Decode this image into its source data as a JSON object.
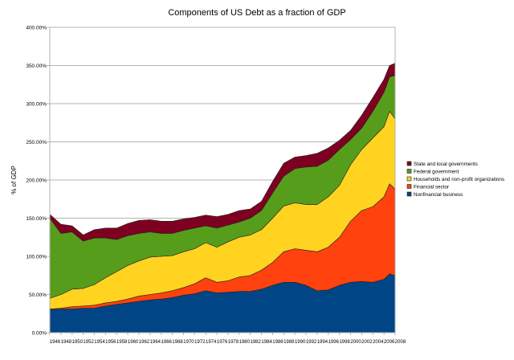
{
  "chart_data": {
    "type": "area",
    "stacked": true,
    "title": "Components of US Debt as a fraction of GDP",
    "xlabel": "",
    "ylabel": "% of GDP",
    "ylim": [
      0,
      400
    ],
    "yticks": [
      "0.00%",
      "50.00%",
      "100.00%",
      "150.00%",
      "200.00%",
      "250.00%",
      "300.00%",
      "350.00%",
      "400.00%"
    ],
    "xticks": [
      "1946",
      "1948",
      "1950",
      "1952",
      "1954",
      "1956",
      "1958",
      "1960",
      "1962",
      "1964",
      "1966",
      "1968",
      "1970",
      "1972",
      "1974",
      "1976",
      "1978",
      "1980",
      "1982",
      "1984",
      "1986",
      "1988",
      "1990",
      "1992",
      "1994",
      "1996",
      "1998",
      "2000",
      "2002",
      "2004",
      "2006",
      "2008"
    ],
    "grid": true,
    "legend_position": "right",
    "x": [
      1946,
      1948,
      1950,
      1952,
      1954,
      1956,
      1958,
      1960,
      1962,
      1964,
      1966,
      1968,
      1970,
      1972,
      1974,
      1976,
      1978,
      1980,
      1982,
      1984,
      1986,
      1988,
      1990,
      1992,
      1994,
      1996,
      1998,
      2000,
      2002,
      2004,
      2006,
      2007,
      2008
    ],
    "series": [
      {
        "name": "Nonfinancial business",
        "color": "#004586",
        "values": [
          30,
          31,
          31,
          32,
          32,
          35,
          37,
          39,
          41,
          43,
          44,
          46,
          49,
          51,
          55,
          52,
          53,
          54,
          54,
          57,
          62,
          66,
          66,
          62,
          55,
          56,
          62,
          66,
          67,
          66,
          70,
          77,
          75
        ]
      },
      {
        "name": "Financial sector",
        "color": "#ff420e",
        "values": [
          1,
          1,
          3,
          3,
          4,
          4,
          4,
          5,
          7,
          7,
          8,
          9,
          10,
          13,
          17,
          14,
          15,
          19,
          21,
          25,
          30,
          40,
          44,
          46,
          51,
          56,
          63,
          80,
          93,
          99,
          108,
          118,
          113
        ]
      },
      {
        "name": "Households and non-profit organizations",
        "color": "#ffd320",
        "values": [
          14,
          18,
          23,
          23,
          27,
          33,
          39,
          44,
          46,
          49,
          48,
          46,
          47,
          46,
          46,
          46,
          51,
          52,
          53,
          53,
          58,
          60,
          60,
          60,
          62,
          66,
          68,
          74,
          80,
          90,
          92,
          95,
          92
        ]
      },
      {
        "name": "Federal government",
        "color": "#579d1c",
        "values": [
          105,
          80,
          75,
          62,
          61,
          52,
          42,
          39,
          36,
          33,
          30,
          29,
          28,
          27,
          22,
          25,
          22,
          20,
          22,
          25,
          33,
          39,
          45,
          49,
          50,
          48,
          47,
          33,
          28,
          35,
          45,
          45,
          57
        ]
      },
      {
        "name": "State and local governments",
        "color": "#7e0021",
        "values": [
          5,
          12,
          8,
          8,
          11,
          13,
          15,
          16,
          17,
          16,
          16,
          16,
          15,
          14,
          14,
          15,
          14,
          15,
          12,
          12,
          15,
          17,
          15,
          15,
          17,
          16,
          12,
          12,
          17,
          18,
          17,
          15,
          16
        ]
      }
    ]
  }
}
